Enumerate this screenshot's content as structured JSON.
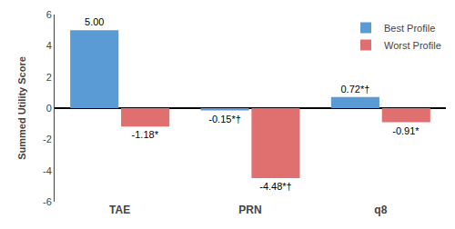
{
  "chart_data": {
    "type": "bar",
    "ylabel": "Summed Utility Score",
    "categories": [
      "TAE",
      "PRN",
      "q8"
    ],
    "series": [
      {
        "name": "Best Profile",
        "color": "#5B9BD5",
        "values": [
          5.0,
          -0.15,
          0.72
        ],
        "value_labels": [
          "5.00",
          "-0.15*†",
          "0.72*†"
        ]
      },
      {
        "name": "Worst Profile",
        "color": "#E07070",
        "values": [
          -1.18,
          -4.48,
          -0.91
        ],
        "value_labels": [
          "-1.18*",
          "-4.48*†",
          "-0.91*"
        ]
      }
    ],
    "ylim": [
      -6,
      6
    ],
    "yticks": [
      -6,
      -4,
      -2,
      0,
      2,
      4,
      6
    ],
    "grid": false,
    "legend": "upper right",
    "data_labels": true
  }
}
